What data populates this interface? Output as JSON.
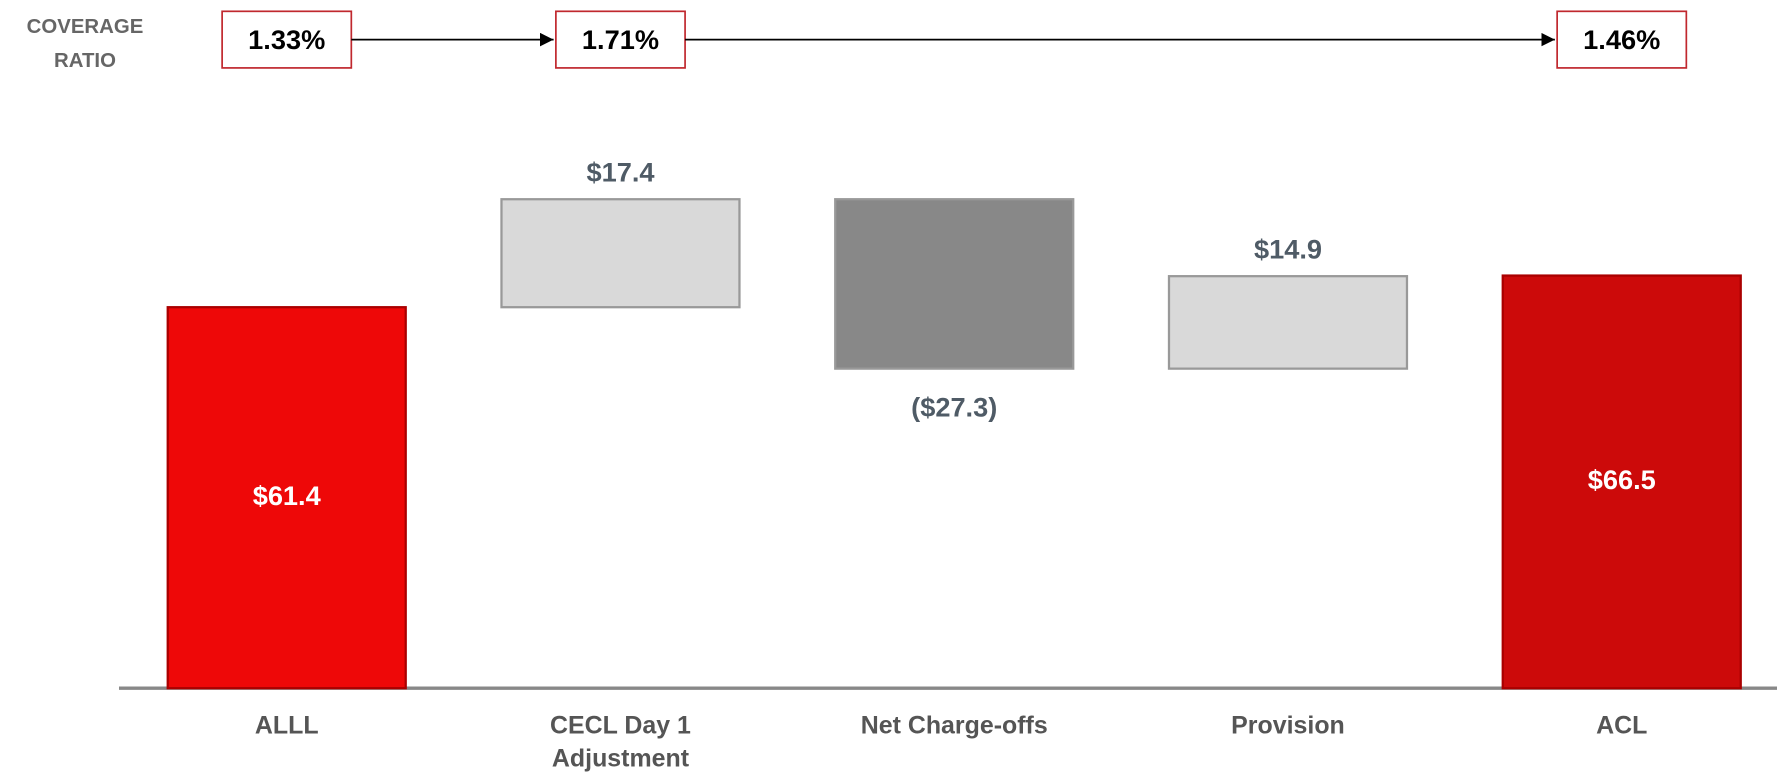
{
  "chart_data": {
    "type": "waterfall",
    "categories": [
      "ALLL",
      "CECL Day 1 Adjustment",
      "Net Charge-offs",
      "Provision",
      "ACL"
    ],
    "values": [
      61.4,
      17.4,
      -27.3,
      14.9,
      66.5
    ],
    "value_labels": [
      "$61.4",
      "$17.4",
      "($27.3)",
      "$14.9",
      "$66.5"
    ],
    "colors": [
      "#ee0808",
      "#d9d9d9",
      "#888888",
      "#d9d9d9",
      "#cc0a0a"
    ],
    "coverage_ratio": {
      "label": "COVERAGE RATIO",
      "values": [
        1.33,
        1.71,
        null,
        null,
        1.46
      ],
      "value_labels": [
        "1.33%",
        "1.71%",
        null,
        null,
        "1.46%"
      ],
      "color": "#c0282e"
    }
  }
}
